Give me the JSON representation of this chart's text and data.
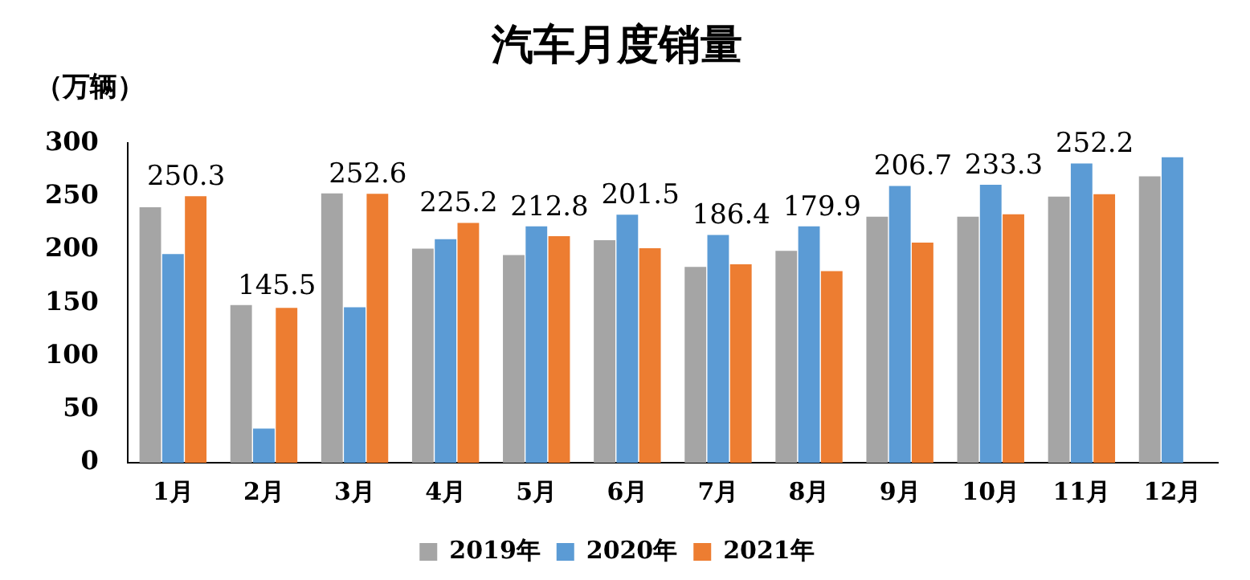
{
  "chart_data": {
    "type": "bar",
    "title": "汽车月度销量",
    "ylabel": "（万辆）",
    "categories": [
      "1月",
      "2月",
      "3月",
      "4月",
      "5月",
      "6月",
      "7月",
      "8月",
      "9月",
      "10月",
      "11月",
      "12月"
    ],
    "series": [
      {
        "name": "2019年",
        "color": "#a5a5a5",
        "values": [
          240,
          148,
          253,
          201,
          195,
          209,
          184,
          199,
          231,
          231,
          250,
          269
        ]
      },
      {
        "name": "2020年",
        "color": "#5b9bd5",
        "values": [
          196,
          32,
          146,
          210,
          222,
          233,
          214,
          222,
          260,
          261,
          281,
          287
        ]
      },
      {
        "name": "2021年",
        "color": "#ed7d31",
        "values": [
          250.3,
          145.5,
          252.6,
          225.2,
          212.8,
          201.5,
          186.4,
          179.9,
          206.7,
          233.3,
          252.2,
          null
        ],
        "value_labels": [
          "250.3",
          "145.5",
          "252.6",
          "225.2",
          "212.8",
          "201.5",
          "186.4",
          "179.9",
          "206.7",
          "233.3",
          "252.2",
          null
        ]
      }
    ],
    "ylim": [
      0,
      300
    ],
    "yticks": [
      0,
      50,
      100,
      150,
      200,
      250,
      300
    ],
    "grid": false,
    "legend": "bottom"
  }
}
